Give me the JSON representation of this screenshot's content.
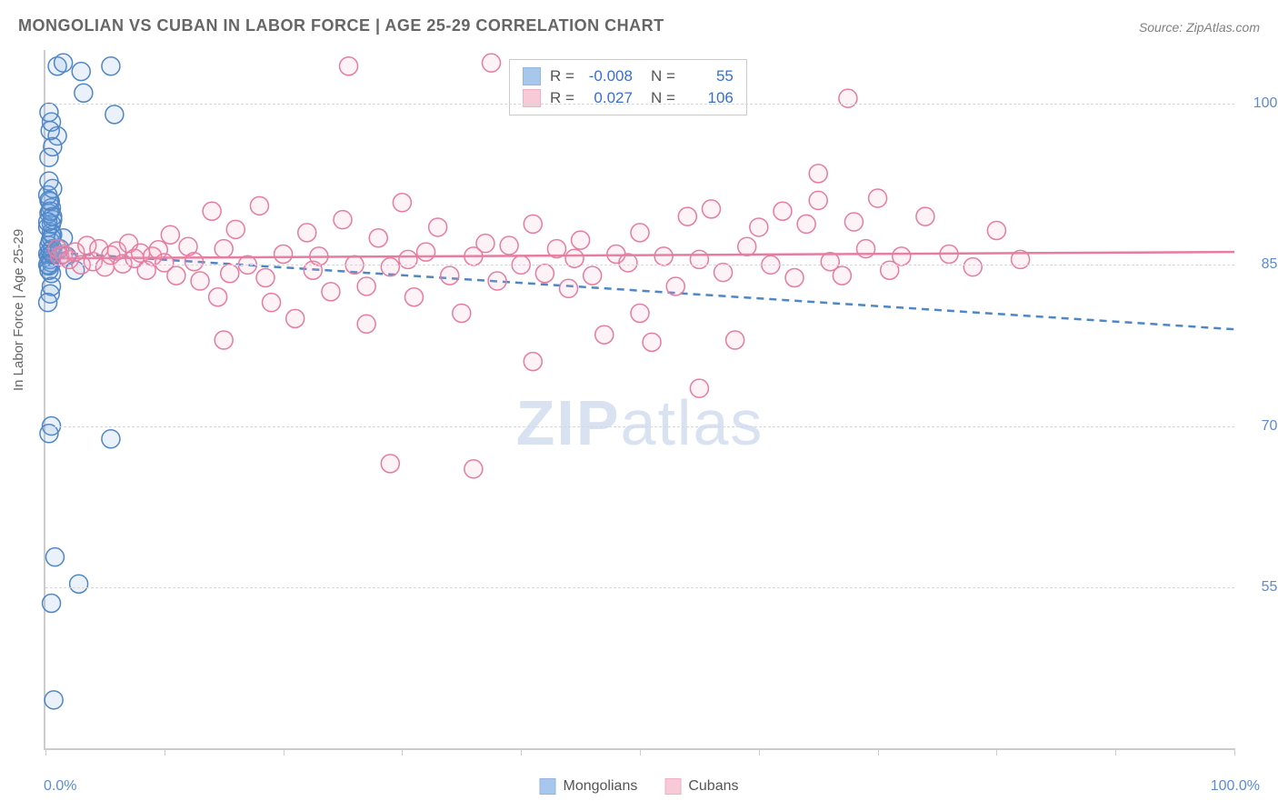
{
  "title": "MONGOLIAN VS CUBAN IN LABOR FORCE | AGE 25-29 CORRELATION CHART",
  "source": "Source: ZipAtlas.com",
  "ylabel": "In Labor Force | Age 25-29",
  "watermark_bold": "ZIP",
  "watermark_rest": "atlas",
  "chart": {
    "type": "scatter",
    "background_color": "#ffffff",
    "grid_color": "#d8d8d8",
    "axis_color": "#cccccc",
    "text_color": "#666666",
    "value_color": "#5b8bd4",
    "title_fontsize": 18,
    "label_fontsize": 15,
    "tick_fontsize": 16,
    "xlim": [
      0,
      100
    ],
    "ylim": [
      40,
      105
    ],
    "yticks": [
      55.0,
      70.0,
      85.0,
      100.0
    ],
    "ytick_labels": [
      "55.0%",
      "70.0%",
      "85.0%",
      "100.0%"
    ],
    "xtick_positions": [
      0,
      10,
      20,
      30,
      40,
      50,
      60,
      70,
      80,
      90,
      100
    ],
    "x_axis_min_label": "0.0%",
    "x_axis_max_label": "100.0%",
    "marker_radius": 10,
    "marker_stroke_width": 1.5,
    "marker_fill_opacity": 0.15,
    "trend_line_width": 2.5,
    "series": [
      {
        "name": "Mongolians",
        "color": "#6fa3e0",
        "stroke": "#4f86c6",
        "R": "-0.008",
        "N": "55",
        "trend": {
          "y_at_x0": 86.2,
          "y_at_x100": 79.0,
          "dashed": true
        },
        "points": [
          [
            0.2,
            86.0
          ],
          [
            0.3,
            85.8
          ],
          [
            0.4,
            85.5
          ],
          [
            0.3,
            84.9
          ],
          [
            0.5,
            84.2
          ],
          [
            0.3,
            86.8
          ],
          [
            0.6,
            86.5
          ],
          [
            0.4,
            87.2
          ],
          [
            0.5,
            88.0
          ],
          [
            0.2,
            88.5
          ],
          [
            0.6,
            89.2
          ],
          [
            0.3,
            89.8
          ],
          [
            0.5,
            90.3
          ],
          [
            0.4,
            90.9
          ],
          [
            0.2,
            91.5
          ],
          [
            0.6,
            92.1
          ],
          [
            0.3,
            92.8
          ],
          [
            0.5,
            83.0
          ],
          [
            0.4,
            82.3
          ],
          [
            0.2,
            81.5
          ],
          [
            0.6,
            87.8
          ],
          [
            0.5,
            85.2
          ],
          [
            0.4,
            86.3
          ],
          [
            0.3,
            84.5
          ],
          [
            0.2,
            85.0
          ],
          [
            0.5,
            88.8
          ],
          [
            0.6,
            89.5
          ],
          [
            0.4,
            90.0
          ],
          [
            0.3,
            91.0
          ],
          [
            0.2,
            89.0
          ],
          [
            0.5,
            87.5
          ],
          [
            0.6,
            86.0
          ],
          [
            1.0,
            103.5
          ],
          [
            1.5,
            103.8
          ],
          [
            3.0,
            103.0
          ],
          [
            5.5,
            103.5
          ],
          [
            3.2,
            101.0
          ],
          [
            1.0,
            97.0
          ],
          [
            0.4,
            97.5
          ],
          [
            0.6,
            96.0
          ],
          [
            0.3,
            95.0
          ],
          [
            0.5,
            98.3
          ],
          [
            0.3,
            99.2
          ],
          [
            5.8,
            99.0
          ],
          [
            0.5,
            70.0
          ],
          [
            0.3,
            69.3
          ],
          [
            5.5,
            68.8
          ],
          [
            0.8,
            57.8
          ],
          [
            2.8,
            55.3
          ],
          [
            0.5,
            53.5
          ],
          [
            0.7,
            44.5
          ],
          [
            1.2,
            86.5
          ],
          [
            1.8,
            85.8
          ],
          [
            2.5,
            84.5
          ],
          [
            1.5,
            87.5
          ]
        ]
      },
      {
        "name": "Cubans",
        "color": "#f4a6bd",
        "stroke": "#e77ba0",
        "R": "0.027",
        "N": "106",
        "trend": {
          "y_at_x0": 85.6,
          "y_at_x100": 86.2,
          "dashed": false
        },
        "points": [
          [
            1.0,
            86.5
          ],
          [
            1.2,
            85.8
          ],
          [
            1.5,
            86.0
          ],
          [
            2.0,
            85.5
          ],
          [
            2.5,
            86.2
          ],
          [
            3.0,
            85.0
          ],
          [
            3.5,
            86.8
          ],
          [
            4.0,
            85.3
          ],
          [
            4.5,
            86.5
          ],
          [
            5.0,
            84.8
          ],
          [
            5.5,
            85.9
          ],
          [
            6.0,
            86.3
          ],
          [
            6.5,
            85.1
          ],
          [
            7.0,
            87.0
          ],
          [
            7.5,
            85.6
          ],
          [
            8.0,
            86.1
          ],
          [
            8.5,
            84.5
          ],
          [
            9.0,
            85.8
          ],
          [
            9.5,
            86.4
          ],
          [
            10.0,
            85.2
          ],
          [
            10.5,
            87.8
          ],
          [
            11.0,
            84.0
          ],
          [
            12.0,
            86.7
          ],
          [
            12.5,
            85.3
          ],
          [
            13.0,
            83.5
          ],
          [
            14.0,
            90.0
          ],
          [
            14.5,
            82.0
          ],
          [
            15.0,
            86.5
          ],
          [
            15.5,
            84.2
          ],
          [
            16.0,
            88.3
          ],
          [
            17.0,
            85.0
          ],
          [
            18.0,
            90.5
          ],
          [
            18.5,
            83.8
          ],
          [
            19.0,
            81.5
          ],
          [
            20.0,
            86.0
          ],
          [
            21.0,
            80.0
          ],
          [
            22.0,
            88.0
          ],
          [
            22.5,
            84.5
          ],
          [
            23.0,
            85.8
          ],
          [
            24.0,
            82.5
          ],
          [
            25.0,
            89.2
          ],
          [
            26.0,
            85.0
          ],
          [
            27.0,
            83.0
          ],
          [
            28.0,
            87.5
          ],
          [
            29.0,
            84.8
          ],
          [
            30.0,
            90.8
          ],
          [
            30.5,
            85.5
          ],
          [
            31.0,
            82.0
          ],
          [
            32.0,
            86.2
          ],
          [
            33.0,
            88.5
          ],
          [
            34.0,
            84.0
          ],
          [
            35.0,
            80.5
          ],
          [
            36.0,
            85.8
          ],
          [
            37.0,
            87.0
          ],
          [
            38.0,
            83.5
          ],
          [
            39.0,
            86.8
          ],
          [
            40.0,
            85.0
          ],
          [
            41.0,
            88.8
          ],
          [
            42.0,
            84.2
          ],
          [
            43.0,
            86.5
          ],
          [
            44.0,
            82.8
          ],
          [
            44.5,
            85.6
          ],
          [
            45.0,
            87.3
          ],
          [
            46.0,
            84.0
          ],
          [
            47.0,
            78.5
          ],
          [
            48.0,
            86.0
          ],
          [
            49.0,
            85.2
          ],
          [
            50.0,
            88.0
          ],
          [
            51.0,
            77.8
          ],
          [
            52.0,
            85.8
          ],
          [
            53.0,
            83.0
          ],
          [
            54.0,
            89.5
          ],
          [
            55.0,
            85.5
          ],
          [
            56.0,
            90.2
          ],
          [
            57.0,
            84.3
          ],
          [
            58.0,
            78.0
          ],
          [
            59.0,
            86.7
          ],
          [
            60.0,
            88.5
          ],
          [
            61.0,
            85.0
          ],
          [
            62.0,
            90.0
          ],
          [
            63.0,
            83.8
          ],
          [
            64.0,
            88.8
          ],
          [
            65.0,
            91.0
          ],
          [
            66.0,
            85.3
          ],
          [
            67.0,
            84.0
          ],
          [
            68.0,
            89.0
          ],
          [
            69.0,
            86.5
          ],
          [
            70.0,
            91.2
          ],
          [
            71.0,
            84.5
          ],
          [
            72.0,
            85.8
          ],
          [
            74.0,
            89.5
          ],
          [
            76.0,
            86.0
          ],
          [
            78.0,
            84.8
          ],
          [
            80.0,
            88.2
          ],
          [
            82.0,
            85.5
          ],
          [
            65.0,
            93.5
          ],
          [
            25.5,
            103.5
          ],
          [
            37.5,
            103.8
          ],
          [
            67.5,
            100.5
          ],
          [
            27.0,
            79.5
          ],
          [
            29.0,
            66.5
          ],
          [
            36.0,
            66.0
          ],
          [
            41.0,
            76.0
          ],
          [
            55.0,
            73.5
          ],
          [
            50.0,
            80.5
          ],
          [
            15.0,
            78.0
          ]
        ]
      }
    ]
  },
  "legend": {
    "series1": "Mongolians",
    "series2": "Cubans"
  },
  "stats": {
    "r_label": "R =",
    "n_label": "N ="
  }
}
